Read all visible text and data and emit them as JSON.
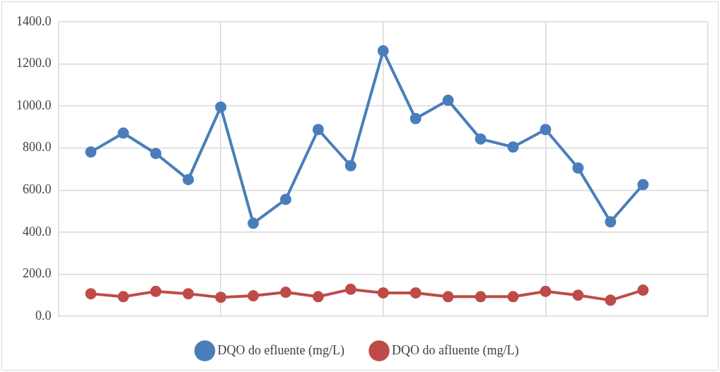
{
  "chart_data": {
    "type": "line",
    "categories": [
      null,
      null,
      null,
      null,
      null,
      null,
      null,
      null,
      null,
      null,
      null,
      null,
      null,
      null,
      null,
      null,
      null,
      null,
      null,
      null,
      null
    ],
    "ylim": [
      0,
      1400
    ],
    "yticks": [
      {
        "value": 0,
        "label": "0.0"
      },
      {
        "value": 200,
        "label": "200.0"
      },
      {
        "value": 400,
        "label": "400.0"
      },
      {
        "value": 600,
        "label": "600.0"
      },
      {
        "value": 800,
        "label": "800.0"
      },
      {
        "value": 1000,
        "label": "1000.0"
      },
      {
        "value": 1200,
        "label": "1200.0"
      },
      {
        "value": 1400,
        "label": "1400.0"
      }
    ],
    "tick_labels": "y",
    "grid": true,
    "legend": "bottom",
    "marker": "circle",
    "line_style": "solid",
    "series": [
      {
        "name": "DQO do efluente (mg/L)",
        "color": "#4a7ebb",
        "values": [
          null,
          781,
          871,
          774,
          650,
          995,
          442,
          556,
          888,
          716,
          1262,
          940,
          1027,
          843,
          805,
          888,
          705,
          449,
          626,
          null,
          null
        ]
      },
      {
        "name": "DQO do afluente (mg/L)",
        "color": "#be4b48",
        "values": [
          null,
          107,
          93,
          118,
          107,
          90,
          97,
          114,
          93,
          128,
          111,
          111,
          93,
          93,
          93,
          118,
          100,
          76,
          124,
          null,
          null
        ]
      }
    ]
  }
}
